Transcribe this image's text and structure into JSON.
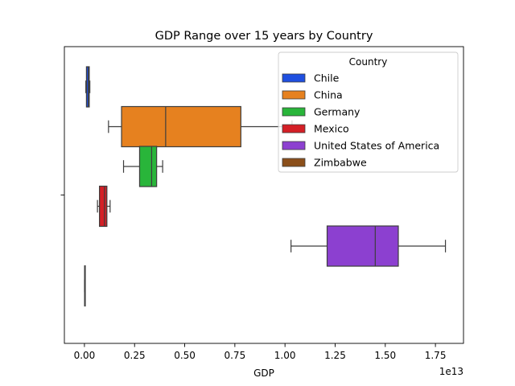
{
  "chart_data": {
    "type": "box",
    "orientation": "horizontal",
    "title": "GDP Range over 15 years by Country",
    "xlabel": "GDP",
    "ylabel": "",
    "x_offset_label": "1e13",
    "x_scale_factor": 10000000000000,
    "xlim": [
      -0.1,
      1.89
    ],
    "x_ticks": [
      0.0,
      0.25,
      0.5,
      0.75,
      1.0,
      1.25,
      1.5,
      1.75
    ],
    "x_tick_labels": [
      "0.00",
      "0.25",
      "0.50",
      "0.75",
      "1.00",
      "1.25",
      "1.50",
      "1.75"
    ],
    "grid": false,
    "legend": {
      "title": "Country",
      "position": "top-right"
    },
    "series": [
      {
        "name": "Chile",
        "color": "#1f4fe0",
        "whisker_low": 0.007,
        "q1": 0.01,
        "median": 0.019,
        "q3": 0.024,
        "whisker_high": 0.027,
        "outliers": []
      },
      {
        "name": "China",
        "color": "#e6811f",
        "whisker_low": 0.12,
        "q1": 0.185,
        "median": 0.405,
        "q3": 0.78,
        "whisker_high": 1.035,
        "outliers": []
      },
      {
        "name": "Germany",
        "color": "#29b53a",
        "whisker_low": 0.195,
        "q1": 0.275,
        "median": 0.335,
        "q3": 0.36,
        "whisker_high": 0.39,
        "outliers": []
      },
      {
        "name": "Mexico",
        "color": "#d41f26",
        "whisker_low": 0.065,
        "q1": 0.075,
        "median": 0.1,
        "q3": 0.112,
        "whisker_high": 0.128,
        "outliers": []
      },
      {
        "name": "United States of America",
        "color": "#8c40d0",
        "whisker_low": 1.03,
        "q1": 1.21,
        "median": 1.45,
        "q3": 1.565,
        "whisker_high": 1.8,
        "outliers": []
      },
      {
        "name": "Zimbabwe",
        "color": "#8b4f1a",
        "whisker_low": 0.0005,
        "q1": 0.001,
        "median": 0.0015,
        "q3": 0.002,
        "whisker_high": 0.0035,
        "outliers": []
      }
    ]
  }
}
